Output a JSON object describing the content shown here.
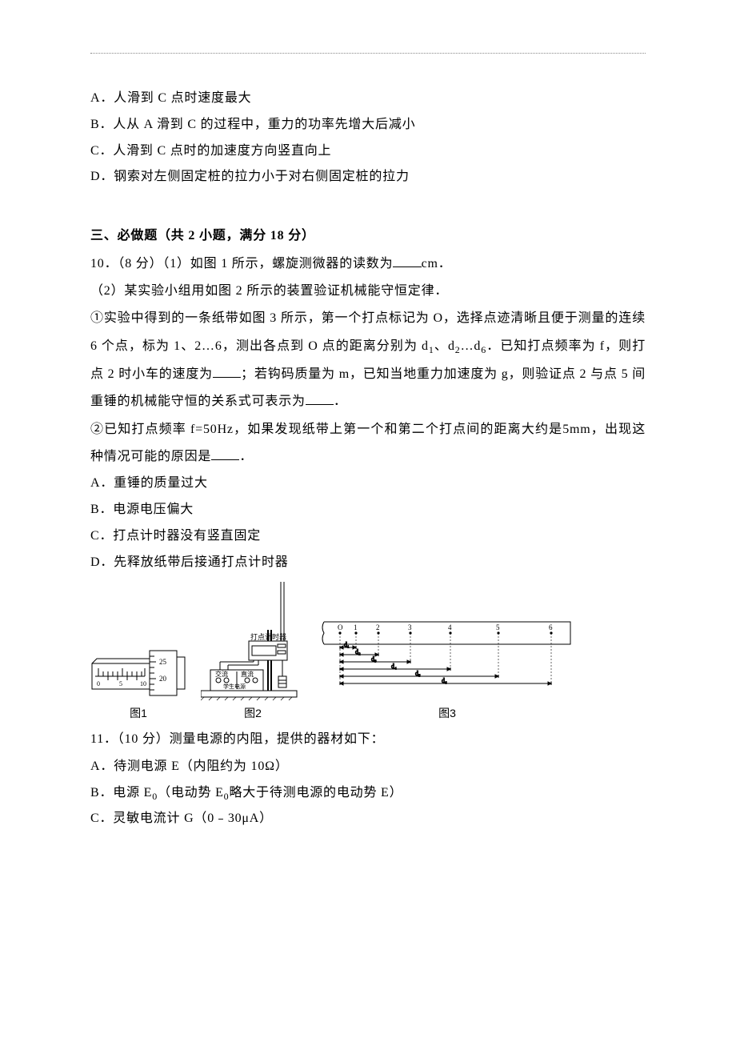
{
  "q9": {
    "options": {
      "A": "A．人滑到 C 点时速度最大",
      "B": "B．人从 A 滑到 C 的过程中，重力的功率先增大后减小",
      "C": "C．人滑到 C 点时的加速度方向竖直向上",
      "D": "D．钢索对左侧固定桩的拉力小于对右侧固定桩的拉力"
    }
  },
  "section3": {
    "heading": "三、必做题（共 2 小题，满分 18 分）"
  },
  "q10": {
    "lead_a": "10．（8 分）（1）如图 1 所示，螺旋测微器的读数为",
    "lead_b": "cm．",
    "sub2": "（2）某实验小组用如图 2 所示的装置验证机械能守恒定律．",
    "p1_a": "①实验中得到的一条纸带如图 3 所示，第一个打点标记为 O，选择点迹清晰且便于测量的连续 6 个点，标为 1、2…6，测出各点到 O 点的距离分别为 d",
    "p1_b": "、d",
    "p1_c": "…d",
    "p1_d": "．已知打点频率为 f，则打点 2 时小车的速度为",
    "p1_e": "；若钩码质量为 m，已知当地重力加速度为 g，则验证点 2 与点 5 间重锤的机械能守恒的关系式可表示为",
    "p1_f": "．",
    "p2_a": "②已知打点频率 f=50Hz，如果发现纸带上第一个和第二个打点间的距离大约是5mm，出现这种情况可能的原因是",
    "p2_b": "．",
    "options": {
      "A": "A．重锤的质量过大",
      "B": "B．电源电压偏大",
      "C": "C．打点计时器没有竖直固定",
      "D": "D．先释放纸带后接通打点计时器"
    },
    "figlabels": {
      "f1": "图1",
      "f2": "图2",
      "f3": "图3"
    }
  },
  "q11": {
    "lead": "11．（10 分）测量电源的内阻，提供的器材如下：",
    "items": {
      "A": "A．待测电源 E（内阻约为 10Ω）",
      "B_a": "B．电源 E",
      "B_b": "（电动势 E",
      "B_c": "略大于待测电源的电动势 E）",
      "C": "C．灵敏电流计 G（0﹣30μA）"
    }
  },
  "fig1": {
    "box_stroke": "#000000",
    "box_fill": "#ffffff",
    "scale_marks": [
      "0",
      "5",
      "10"
    ],
    "barrel_marks": [
      "25",
      "20"
    ]
  },
  "fig2": {
    "stroke": "#000000",
    "fill": "#ffffff",
    "labels": {
      "timer": "打点计时器",
      "ac": "交流",
      "dc": "直流",
      "psu": "学生电源"
    }
  },
  "fig3": {
    "stroke": "#000000",
    "point_labels": [
      "O",
      "1",
      "2",
      "3",
      "4",
      "5",
      "6"
    ],
    "point_x": [
      26,
      46,
      74,
      114,
      164,
      224,
      290
    ],
    "d_labels": [
      "d₁",
      "d₂",
      "d₃",
      "d₄",
      "d₅",
      "d₆"
    ]
  },
  "style": {
    "text_color": "#000000",
    "bg_color": "#ffffff",
    "base_fontsize": 16,
    "line_height": 2.15
  }
}
